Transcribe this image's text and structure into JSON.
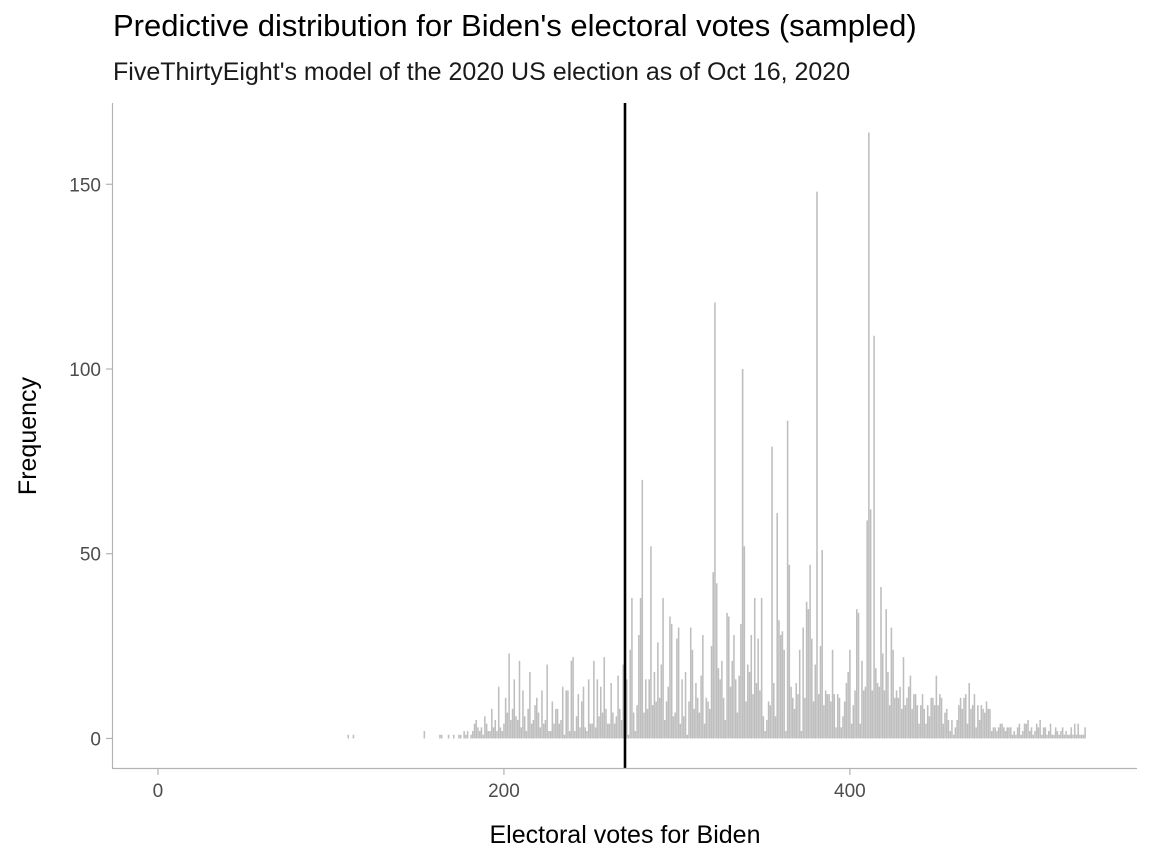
{
  "chart_data": {
    "type": "bar",
    "title": "Predictive distribution for Biden's electoral votes (sampled)",
    "subtitle": "FiveThirtyEight's model of the 2020 US election as of Oct 16, 2020",
    "xlabel": "Electoral votes for Biden",
    "ylabel": "Frequency",
    "xlim": [
      -26,
      566
    ],
    "ylim": [
      -8,
      172
    ],
    "x_ticks": [
      0,
      200,
      400
    ],
    "y_ticks": [
      0,
      50,
      100,
      150
    ],
    "vline": {
      "x": 270
    },
    "bar_color": "#bebebe",
    "vline_color": "#000000",
    "grid": false,
    "x": [
      110,
      113,
      154,
      163,
      164,
      168,
      171,
      174,
      175,
      177,
      178,
      179,
      181,
      182,
      183,
      184,
      185,
      186,
      187,
      188,
      189,
      190,
      191,
      192,
      193,
      194,
      195,
      196,
      197,
      198,
      199,
      200,
      201,
      202,
      203,
      204,
      205,
      206,
      207,
      208,
      209,
      210,
      211,
      212,
      213,
      214,
      215,
      216,
      217,
      218,
      219,
      220,
      221,
      222,
      223,
      224,
      225,
      226,
      227,
      228,
      229,
      230,
      231,
      232,
      233,
      234,
      235,
      236,
      237,
      238,
      239,
      240,
      241,
      242,
      243,
      244,
      245,
      246,
      247,
      248,
      249,
      250,
      251,
      252,
      253,
      254,
      255,
      256,
      257,
      258,
      259,
      260,
      261,
      262,
      263,
      264,
      265,
      266,
      267,
      268,
      269,
      270,
      271,
      272,
      273,
      274,
      275,
      276,
      277,
      278,
      279,
      280,
      281,
      282,
      283,
      284,
      285,
      286,
      287,
      288,
      289,
      290,
      291,
      292,
      293,
      294,
      295,
      296,
      297,
      298,
      299,
      300,
      301,
      302,
      303,
      304,
      305,
      306,
      307,
      308,
      309,
      310,
      311,
      312,
      313,
      314,
      315,
      316,
      317,
      318,
      319,
      320,
      321,
      322,
      323,
      324,
      325,
      326,
      327,
      328,
      329,
      330,
      331,
      332,
      333,
      334,
      335,
      336,
      337,
      338,
      339,
      340,
      341,
      342,
      343,
      344,
      345,
      346,
      347,
      348,
      349,
      350,
      351,
      352,
      353,
      354,
      355,
      356,
      357,
      358,
      359,
      360,
      361,
      362,
      363,
      364,
      365,
      366,
      367,
      368,
      369,
      370,
      371,
      372,
      373,
      374,
      375,
      376,
      377,
      378,
      379,
      380,
      381,
      382,
      383,
      384,
      385,
      386,
      387,
      388,
      389,
      390,
      391,
      392,
      393,
      394,
      395,
      396,
      397,
      398,
      399,
      400,
      401,
      402,
      403,
      404,
      405,
      406,
      407,
      408,
      409,
      410,
      411,
      412,
      413,
      414,
      415,
      416,
      417,
      418,
      419,
      420,
      421,
      422,
      423,
      424,
      425,
      426,
      427,
      428,
      429,
      430,
      431,
      432,
      433,
      434,
      435,
      436,
      437,
      438,
      439,
      440,
      441,
      442,
      443,
      444,
      445,
      446,
      447,
      448,
      449,
      450,
      451,
      452,
      453,
      454,
      455,
      456,
      457,
      458,
      459,
      460,
      461,
      462,
      463,
      464,
      465,
      466,
      467,
      468,
      469,
      470,
      471,
      472,
      473,
      474,
      475,
      476,
      477,
      478,
      479,
      480,
      481,
      482,
      483,
      484,
      485,
      486,
      487,
      488,
      489,
      490,
      491,
      492,
      493,
      494,
      495,
      496,
      497,
      498,
      499,
      500,
      501,
      502,
      503,
      504,
      505,
      506,
      507,
      508,
      509,
      510,
      511,
      512,
      513,
      514,
      515,
      516,
      517,
      518,
      519,
      520,
      521,
      522,
      523,
      524,
      525,
      526,
      527,
      528,
      529,
      530,
      531,
      532,
      533,
      534,
      535,
      536
    ],
    "values": [
      1,
      1,
      2,
      1,
      1,
      1,
      1,
      1,
      1,
      2,
      1,
      2,
      1,
      2,
      4,
      5,
      3,
      2,
      3,
      1,
      6,
      4,
      2,
      2,
      8,
      3,
      5,
      2,
      14,
      3,
      2,
      4,
      11,
      7,
      23,
      5,
      8,
      16,
      6,
      5,
      21,
      3,
      13,
      6,
      2,
      8,
      18,
      4,
      5,
      9,
      11,
      7,
      3,
      13,
      4,
      5,
      20,
      2,
      2,
      10,
      4,
      8,
      8,
      4,
      5,
      14,
      1,
      13,
      13,
      2,
      21,
      22,
      2,
      6,
      12,
      3,
      10,
      14,
      3,
      2,
      16,
      4,
      4,
      21,
      3,
      16,
      6,
      14,
      7,
      22,
      8,
      4,
      4,
      15,
      7,
      4,
      6,
      17,
      8,
      5,
      20,
      10,
      16,
      1,
      24,
      38,
      7,
      2,
      9,
      28,
      38,
      70,
      7,
      16,
      8,
      16,
      52,
      9,
      18,
      10,
      26,
      11,
      20,
      38,
      5,
      10,
      14,
      33,
      31,
      6,
      7,
      27,
      30,
      4,
      16,
      6,
      18,
      1,
      10,
      30,
      24,
      8,
      15,
      11,
      7,
      17,
      28,
      4,
      11,
      10,
      8,
      25,
      45,
      118,
      42,
      19,
      16,
      21,
      11,
      5,
      34,
      33,
      14,
      21,
      28,
      16,
      7,
      17,
      31,
      100,
      52,
      10,
      20,
      18,
      28,
      12,
      38,
      15,
      27,
      13,
      38,
      6,
      2,
      5,
      10,
      9,
      79,
      15,
      6,
      61,
      32,
      28,
      29,
      24,
      2,
      86,
      47,
      14,
      11,
      8,
      15,
      12,
      24,
      2,
      30,
      11,
      37,
      35,
      47,
      27,
      10,
      20,
      148,
      12,
      25,
      51,
      9,
      13,
      12,
      12,
      10,
      24,
      12,
      3,
      12,
      11,
      3,
      6,
      10,
      15,
      18,
      24,
      4,
      9,
      13,
      35,
      34,
      4,
      21,
      13,
      14,
      59,
      164,
      62,
      13,
      109,
      19,
      15,
      14,
      41,
      23,
      13,
      35,
      18,
      9,
      30,
      24,
      11,
      13,
      11,
      14,
      8,
      22,
      9,
      11,
      14,
      17,
      8,
      12,
      12,
      9,
      4,
      9,
      12,
      8,
      4,
      9,
      6,
      11,
      11,
      9,
      17,
      9,
      12,
      11,
      4,
      7,
      8,
      5,
      2,
      5,
      1,
      3,
      5,
      9,
      11,
      8,
      11,
      12,
      4,
      15,
      8,
      9,
      12,
      3,
      9,
      5,
      9,
      8,
      7,
      10,
      8,
      8,
      2,
      3,
      3,
      2,
      3,
      4,
      4,
      3,
      2,
      3,
      3,
      3,
      1,
      2,
      1,
      3,
      4,
      1,
      2,
      4,
      4,
      5,
      2,
      3,
      1,
      2,
      4,
      3,
      5,
      1,
      3,
      3,
      1,
      2,
      4,
      1,
      1,
      3,
      2,
      1,
      2,
      3,
      1,
      2,
      1,
      1,
      3,
      1,
      4,
      1,
      4,
      1,
      1,
      1,
      3
    ]
  }
}
